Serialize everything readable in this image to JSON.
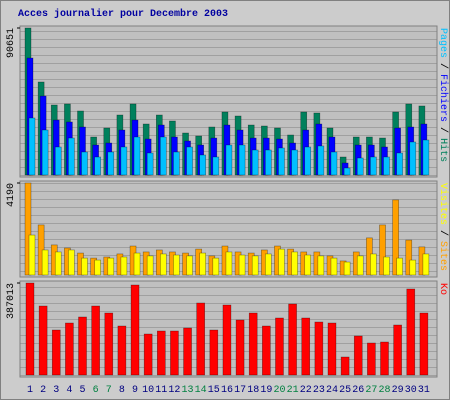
{
  "chart_data": [
    {
      "type": "bar",
      "title": "Acces journalier pour Decembre 2003",
      "legend_separator": "/",
      "ylim": [
        0,
        90651
      ],
      "yticks": [
        90651
      ],
      "series": [
        {
          "name": "Hits",
          "color": "#00805c",
          "values": [
            90651,
            57350,
            43170,
            43800,
            39470,
            23430,
            28980,
            37000,
            43800,
            31450,
            37000,
            33300,
            25900,
            24050,
            29600,
            38850,
            36380,
            30830,
            30220,
            28980,
            24670,
            38850,
            38240,
            28980,
            11100,
            23430,
            23430,
            22800,
            38850,
            43800,
            42560
          ]
        },
        {
          "name": "Fichiers",
          "color": "#0000ff",
          "values": [
            72150,
            48700,
            33900,
            32700,
            29600,
            18500,
            19730,
            27750,
            33900,
            22200,
            30830,
            23430,
            20970,
            18500,
            22800,
            30830,
            27750,
            22800,
            22800,
            22200,
            19730,
            27750,
            31450,
            23430,
            7400,
            18500,
            18500,
            17270,
            28980,
            29600,
            31450
          ]
        },
        {
          "name": "Pages",
          "color": "#00c0ff",
          "values": [
            35150,
            27750,
            17270,
            22800,
            14180,
            11100,
            14180,
            17270,
            23430,
            13570,
            23430,
            14180,
            17270,
            12330,
            11100,
            18500,
            18500,
            15420,
            15420,
            16650,
            15420,
            17270,
            17890,
            14180,
            4320,
            10480,
            11100,
            11100,
            13570,
            20350,
            21580
          ]
        }
      ]
    },
    {
      "type": "bar",
      "legend_separator": "/",
      "ylim": [
        0,
        4190
      ],
      "yticks": [
        4190
      ],
      "series": [
        {
          "name": "Sites",
          "color": "#ffa000",
          "values": [
            4190,
            2280,
            1370,
            1230,
            1000,
            770,
            820,
            960,
            1320,
            1050,
            1140,
            1050,
            1000,
            1180,
            870,
            1320,
            1050,
            1000,
            1140,
            1320,
            1180,
            1050,
            1050,
            870,
            640,
            1050,
            1690,
            2280,
            3420,
            1590,
            1280
          ]
        },
        {
          "name": "Visites",
          "color": "#ffff00",
          "values": [
            1820,
            1140,
            1050,
            1140,
            770,
            680,
            770,
            820,
            1000,
            870,
            960,
            910,
            870,
            1000,
            770,
            1050,
            910,
            870,
            960,
            1180,
            1050,
            910,
            870,
            770,
            590,
            870,
            960,
            820,
            770,
            680,
            960
          ]
        }
      ]
    },
    {
      "type": "bar",
      "ylim": [
        0,
        387013
      ],
      "yticks": [
        387013
      ],
      "series": [
        {
          "name": "Ko",
          "color": "#ff0000",
          "values": [
            387013,
            290260,
            189300,
            218750,
            244000,
            290260,
            260810,
            206130,
            378600,
            172480,
            185100,
            185100,
            197720,
            302880,
            189300,
            294470,
            231370,
            260810,
            206130,
            239780,
            298680,
            239780,
            222950,
            218750,
            75720,
            164060,
            134610,
            138820,
            210330,
            361780,
            260810
          ]
        }
      ],
      "categories": [
        "1",
        "2",
        "3",
        "4",
        "5",
        "6",
        "7",
        "8",
        "9",
        "10",
        "11",
        "12",
        "13",
        "14",
        "15",
        "16",
        "17",
        "18",
        "19",
        "20",
        "21",
        "22",
        "23",
        "24",
        "25",
        "26",
        "27",
        "28",
        "29",
        "30",
        "31"
      ],
      "category_colors": [
        "#000080",
        "#000080",
        "#000080",
        "#000080",
        "#000080",
        "#008040",
        "#008040",
        "#000080",
        "#000080",
        "#000080",
        "#000080",
        "#000080",
        "#008040",
        "#008040",
        "#000080",
        "#000080",
        "#000080",
        "#000080",
        "#000080",
        "#008040",
        "#008040",
        "#000080",
        "#000080",
        "#000080",
        "#000080",
        "#000080",
        "#008040",
        "#008040",
        "#000080",
        "#000080",
        "#000080"
      ]
    }
  ]
}
